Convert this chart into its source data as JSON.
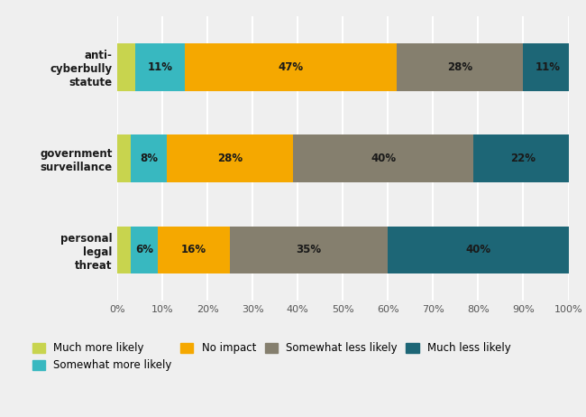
{
  "categories": [
    "anti-\ncyberbully\nstatute",
    "government\nsurveillance",
    "personal\nlegal\nthreat"
  ],
  "series": [
    {
      "label": "Much more likely",
      "color": "#c8d44e",
      "values": [
        4,
        3,
        3
      ]
    },
    {
      "label": "Somewhat more likely",
      "color": "#38b8c0",
      "values": [
        11,
        8,
        6
      ]
    },
    {
      "label": "No impact",
      "color": "#f5a800",
      "values": [
        47,
        28,
        16
      ]
    },
    {
      "label": "Somewhat less likely",
      "color": "#857f6e",
      "values": [
        28,
        40,
        35
      ]
    },
    {
      "label": "Much less likely",
      "color": "#1d6676",
      "values": [
        11,
        22,
        40
      ]
    }
  ],
  "background_color": "#efefef",
  "plot_bg_color": "#efefef",
  "xlim": [
    0,
    100
  ],
  "xticks": [
    0,
    10,
    20,
    30,
    40,
    50,
    60,
    70,
    80,
    90,
    100
  ],
  "xtick_labels": [
    "0%",
    "10%",
    "20%",
    "30%",
    "40%",
    "50%",
    "60%",
    "70%",
    "80%",
    "90%",
    "100%"
  ],
  "bar_height": 0.52,
  "label_fontsize": 8.5,
  "tick_fontsize": 8.0,
  "legend_fontsize": 8.5,
  "category_fontsize": 8.5,
  "text_color": "#1a1a1a",
  "grid_color": "#ffffff",
  "legend_ncol": 4
}
